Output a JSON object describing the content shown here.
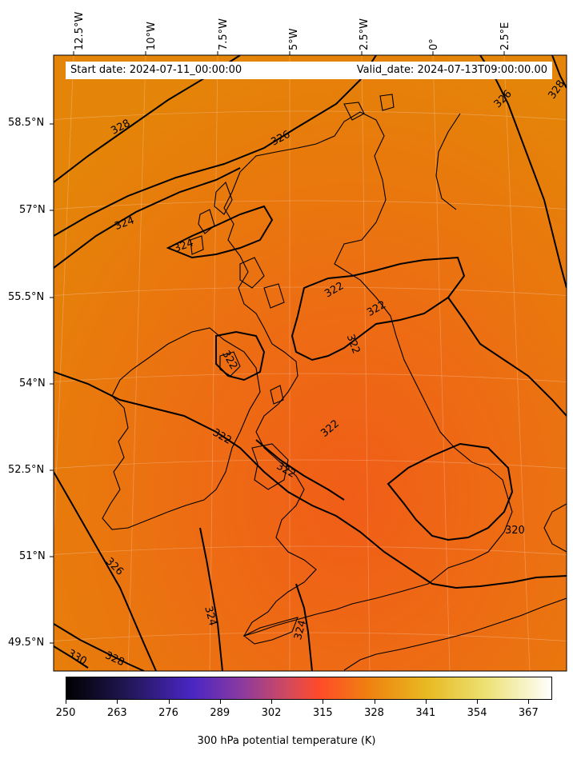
{
  "header": {
    "start_date": "Start date: 2024-07-11_00:00:00",
    "valid_date": "Valid_date: 2024-07-13T09:00:00.00"
  },
  "longitude_labels": [
    "12.5°W",
    "10°W",
    "7.5°W",
    "5°W",
    "2.5°W",
    "0°",
    "2.5°E"
  ],
  "latitude_labels": [
    "58.5°N",
    "57°N",
    "55.5°N",
    "54°N",
    "52.5°N",
    "51°N",
    "49.5°N"
  ],
  "contour_labels": [
    "328",
    "326",
    "324",
    "324",
    "322",
    "322",
    "322",
    "322",
    "322",
    "322",
    "322",
    "320",
    "326",
    "324",
    "324",
    "326",
    "328",
    "330",
    "328"
  ],
  "colorbar": {
    "title": "300 hPa potential temperature (K)",
    "ticks": [
      "250",
      "263",
      "276",
      "289",
      "302",
      "315",
      "328",
      "341",
      "354",
      "367"
    ],
    "range": [
      250,
      373
    ]
  },
  "colors": {
    "map_fill_outer": "#e6820a",
    "map_fill_inner": "#f06a18",
    "coast": "#000000"
  }
}
